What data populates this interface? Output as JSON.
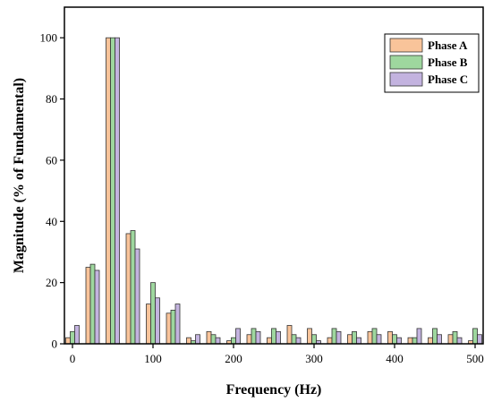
{
  "chart_data": {
    "type": "bar",
    "xlabel": "Frequency (Hz)",
    "ylabel": "Magnitude (% of Fundamental)",
    "xlim": [
      -10,
      510
    ],
    "ylim": [
      0,
      110
    ],
    "xticks": [
      0,
      100,
      200,
      300,
      400,
      500
    ],
    "yticks": [
      0,
      20,
      40,
      60,
      80,
      100
    ],
    "grid": false,
    "legend_position": "top-right",
    "x": [
      0,
      25,
      50,
      75,
      100,
      125,
      150,
      175,
      200,
      225,
      250,
      275,
      300,
      325,
      350,
      375,
      400,
      425,
      450,
      475,
      500
    ],
    "series": [
      {
        "name": "Phase A",
        "color": "#f9c49a",
        "values": [
          2,
          25,
          100,
          36,
          13,
          10,
          2,
          4,
          1,
          3,
          2,
          6,
          5,
          2,
          3,
          4,
          4,
          2,
          2,
          3,
          1
        ]
      },
      {
        "name": "Phase B",
        "color": "#9ed79e",
        "values": [
          4,
          26,
          100,
          37,
          20,
          11,
          1,
          3,
          2,
          5,
          5,
          3,
          3,
          5,
          4,
          5,
          3,
          2,
          5,
          4,
          5
        ]
      },
      {
        "name": "Phase C",
        "color": "#c3b3df",
        "values": [
          6,
          24,
          100,
          31,
          15,
          13,
          3,
          2,
          5,
          4,
          4,
          2,
          1,
          4,
          2,
          3,
          2,
          5,
          3,
          2,
          3
        ]
      }
    ]
  }
}
